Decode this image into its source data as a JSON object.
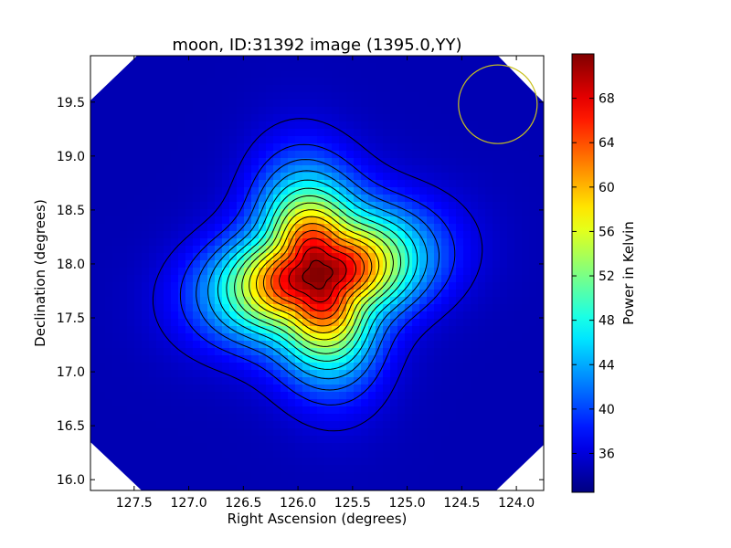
{
  "chart_data": {
    "type": "heatmap",
    "title": "moon, ID:31392 image (1395.0,YY)",
    "xlabel": "Right Ascension (degrees)",
    "ylabel": "Declination (degrees)",
    "xlim": [
      127.9,
      123.75
    ],
    "ylim": [
      15.9,
      19.93
    ],
    "x_ticks": [
      127.5,
      127.0,
      126.5,
      126.0,
      125.5,
      125.0,
      124.5,
      124.0
    ],
    "x_tick_labels": [
      "127.5",
      "127.0",
      "126.5",
      "126.0",
      "125.5",
      "125.0",
      "124.5",
      "124.0"
    ],
    "y_ticks": [
      16.0,
      16.5,
      17.0,
      17.5,
      18.0,
      18.5,
      19.0,
      19.5
    ],
    "y_tick_labels": [
      "16.0",
      "16.5",
      "17.0",
      "17.5",
      "18.0",
      "18.5",
      "19.0",
      "19.5"
    ],
    "colormap": "jet",
    "colorbar": {
      "label": "Power in Kelvin",
      "min": 32.5,
      "max": 72.0,
      "ticks": [
        36,
        40,
        44,
        48,
        52,
        56,
        60,
        64,
        68
      ],
      "tick_labels": [
        "36",
        "40",
        "44",
        "48",
        "52",
        "56",
        "60",
        "64",
        "68"
      ]
    },
    "source": {
      "center_ra": 125.82,
      "center_dec": 17.9,
      "peak_value": 72.0,
      "background_value": 34.5
    },
    "contour_levels": [
      36,
      38.5,
      41,
      43.5,
      46,
      48.5,
      51,
      53.5,
      56,
      58.5,
      61,
      63.5,
      66,
      68.5,
      71
    ],
    "beam_circle": {
      "center_ra": 124.17,
      "center_dec": 19.48,
      "radius_deg": 0.36,
      "color": "#c8c020"
    },
    "masked_corner_color": "#ffffff",
    "grid": false
  }
}
